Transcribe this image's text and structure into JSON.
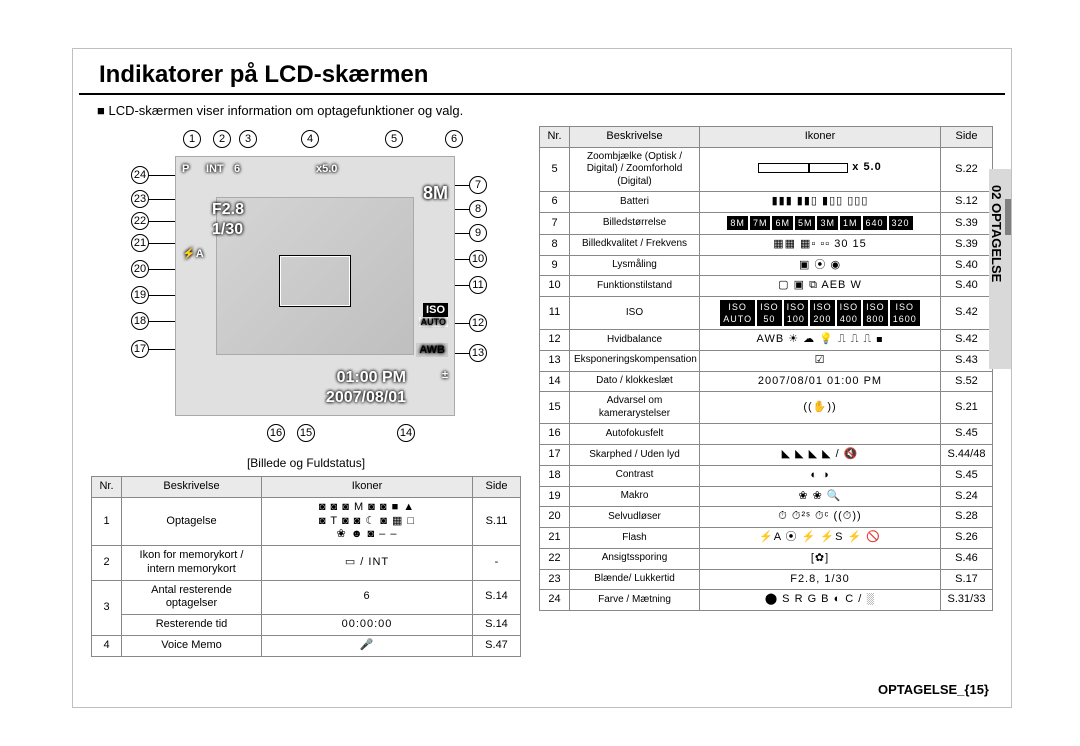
{
  "header": {
    "title": "Indikatorer på LCD-skærmen",
    "intro": "LCD-skærmen viser information om optagefunktioner og valg."
  },
  "lcd": {
    "top_left": "P",
    "int": "INT",
    "shots": "6",
    "zoom_text": "x5.0",
    "mp": "8M",
    "aperture": "F2.8",
    "shutter": "1/30",
    "flash": "⚡A",
    "iso_label": "ISO",
    "iso_mode": "AUTO",
    "awb": "AWB",
    "ev": "±",
    "time": "01:00 PM",
    "date": "2007/08/01"
  },
  "caption": "Billede og Fuldstatus",
  "tableLeft": {
    "headers": {
      "nr": "Nr.",
      "desc": "Beskrivelse",
      "icons": "Ikoner",
      "side": "Side"
    },
    "rows": [
      {
        "nr": "1",
        "desc": "Optagelse",
        "icons": "◙ ◙ ◙ M ◙ ◙ ■ ▲\n◙ T ◙ ◙ ☾ ◙ ▦ □\n❀ ☻ ◙ – –",
        "side": "S.11"
      },
      {
        "nr": "2",
        "desc": "Ikon for memorykort / intern memorykort",
        "icons": "▭ / INT",
        "side": "-"
      },
      {
        "nr": "3a",
        "desc": "Antal resterende optagelser",
        "icons": "6",
        "side": "S.14"
      },
      {
        "nr": "3b",
        "desc": "Resterende tid",
        "icons": "00:00:00",
        "side": "S.14"
      },
      {
        "nr": "4",
        "desc": "Voice Memo",
        "icons": "🎤",
        "side": "S.47"
      }
    ]
  },
  "tableRight": {
    "headers": {
      "nr": "Nr.",
      "desc": "Beskrivelse",
      "icons": "Ikoner",
      "side": "Side"
    },
    "rows": [
      {
        "nr": "5",
        "desc": "Zoombjælke (Optisk / Digital) / Zoomforhold (Digital)",
        "icons": "__ZOOMBAR__",
        "side": "S.22"
      },
      {
        "nr": "6",
        "desc": "Batteri",
        "icons": "▮▮▮ ▮▮▯ ▮▯▯ ▯▯▯",
        "side": "S.12"
      },
      {
        "nr": "7",
        "desc": "Billedstørrelse",
        "icons": "8M 7M 6M 5M 3M 1M 640 320",
        "side": "S.39"
      },
      {
        "nr": "8",
        "desc": "Billedkvalitet / Frekvens",
        "icons": "▦▦ ▦▫ ▫▫  30 15",
        "side": "S.39"
      },
      {
        "nr": "9",
        "desc": "Lysmåling",
        "icons": "▣  ⦿  ◉",
        "side": "S.40"
      },
      {
        "nr": "10",
        "desc": "Funktionstilstand",
        "icons": "▢ ▣ ⧉ AEB W",
        "side": "S.40"
      },
      {
        "nr": "11",
        "desc": "ISO",
        "icons": "AUTO 50 100 200 400 800 1600",
        "side": "S.42"
      },
      {
        "nr": "12",
        "desc": "Hvidbalance",
        "icons": "AWB ☀ ☁ 💡 ⎍ ⎍ ⎍ ◼",
        "side": "S.42"
      },
      {
        "nr": "13",
        "desc": "Eksponeringskompensation",
        "icons": "☑",
        "side": "S.43"
      },
      {
        "nr": "14",
        "desc": "Dato / klokkeslæt",
        "icons": "2007/08/01 01:00 PM",
        "side": "S.52"
      },
      {
        "nr": "15",
        "desc": "Advarsel om kamerarystelser",
        "icons": "((✋))",
        "side": "S.21"
      },
      {
        "nr": "16",
        "desc": "Autofokusfelt",
        "icons": "",
        "side": "S.45"
      },
      {
        "nr": "17",
        "desc": "Skarphed / Uden lyd",
        "icons": "◣ ◣ ◣ ◣ / 🔇",
        "side": "S.44/48"
      },
      {
        "nr": "18",
        "desc": "Contrast",
        "icons": "◐   ◑",
        "side": "S.45"
      },
      {
        "nr": "19",
        "desc": "Makro",
        "icons": "❀ ❀ 🔍",
        "side": "S.24"
      },
      {
        "nr": "20",
        "desc": "Selvudløser",
        "icons": "⏱ ⏱²ˢ ⏱ᶜ ((⏱))",
        "side": "S.28"
      },
      {
        "nr": "21",
        "desc": "Flash",
        "icons": "⚡A ⦿ ⚡ ⚡S ⚡ 🚫",
        "side": "S.26"
      },
      {
        "nr": "22",
        "desc": "Ansigtssporing",
        "icons": "[✿]",
        "side": "S.46"
      },
      {
        "nr": "23",
        "desc": "Blænde/ Lukkertid",
        "icons": "F2.8, 1/30",
        "side": "S.17"
      },
      {
        "nr": "24",
        "desc": "Farve / Mætning",
        "icons": "⬤ S R G B ◐ C / ░",
        "side": "S.31/33"
      }
    ]
  },
  "sideTab": "02 OPTAGELSE",
  "footer": "OPTAGELSE_{15}",
  "labels_top": [
    "1",
    "2",
    "3",
    "4",
    "5",
    "6"
  ],
  "labels_left": [
    "24",
    "23",
    "22",
    "21",
    "20",
    "19",
    "18",
    "17"
  ],
  "labels_right": [
    "7",
    "8",
    "9",
    "10",
    "11",
    "12",
    "13"
  ],
  "labels_bottom": [
    "16",
    "15",
    "14"
  ],
  "zoom_ratio": "x 5.0"
}
